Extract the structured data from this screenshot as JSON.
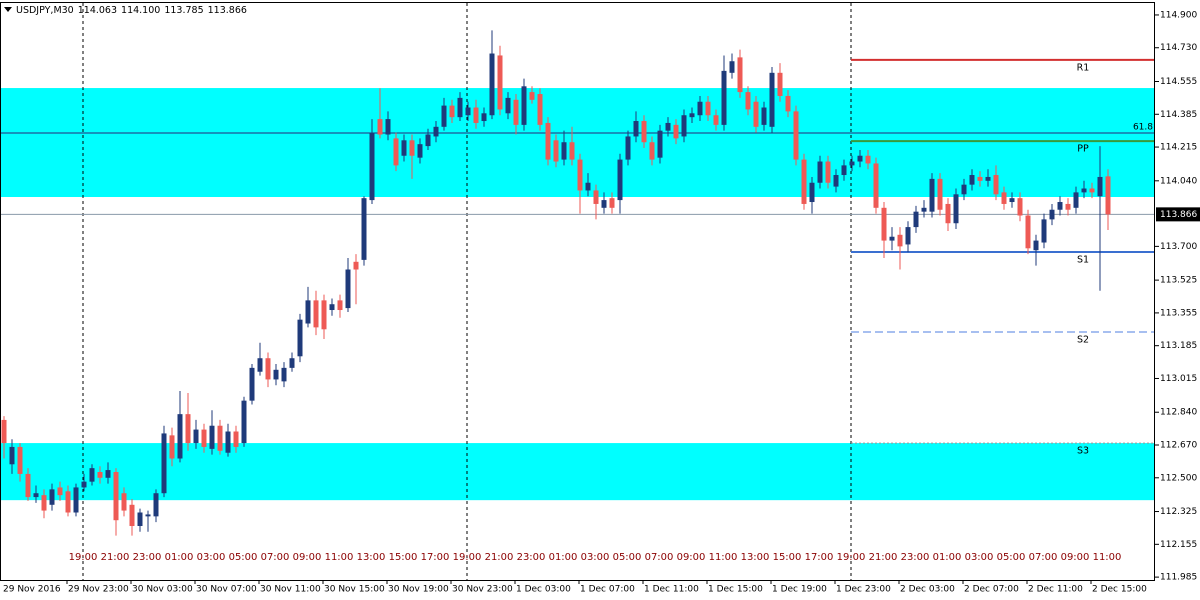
{
  "chart_data": {
    "type": "candlestick",
    "header": {
      "symbol": "USDJPY,M30",
      "ohlc_labels": [
        "114.063",
        "114.100",
        "113.785",
        "113.866"
      ]
    },
    "up_color": "#1f3a7a",
    "down_color": "#ee5a55",
    "ylim": [
      111.97,
      114.962
    ],
    "yticks": [
      {
        "value": 114.9,
        "label": "114.900"
      },
      {
        "value": 114.73,
        "label": "114.730"
      },
      114.555,
      114.385,
      114.215,
      {
        "value": 114.04,
        "label": "114.040"
      },
      {
        "value": 113.7,
        "label": "113.700"
      },
      113.525,
      113.355,
      113.185,
      113.015,
      {
        "value": 112.84,
        "label": "112.840"
      },
      {
        "value": 112.67,
        "label": "112.670"
      },
      {
        "value": 112.5,
        "label": "112.500"
      },
      112.325,
      112.155,
      111.985
    ],
    "x_labels": [
      "29 Nov 2016",
      "29 Nov 23:00",
      "30 Nov 03:00",
      "30 Nov 07:00",
      "30 Nov 11:00",
      "30 Nov 15:00",
      "30 Nov 19:00",
      "30 Nov 23:00",
      "1 Dec 03:00",
      "1 Dec 07:00",
      "1 Dec 11:00",
      "1 Dec 15:00",
      "1 Dec 19:00",
      "1 Dec 23:00",
      "2 Dec 03:00",
      "2 Dec 07:00",
      "2 Dec 11:00",
      "2 Dec 15:00"
    ],
    "hour_labels": [
      "19:00",
      "21:00",
      "23:00",
      "01:00",
      "03:00",
      "05:00",
      "07:00",
      "09:00",
      "11:00",
      "13:00",
      "15:00",
      "17:00",
      "19:00",
      "21:00",
      "23:00",
      "01:00",
      "03:00",
      "05:00",
      "07:00",
      "09:00",
      "11:00",
      "13:00",
      "15:00",
      "17:00",
      "19:00",
      "21:00",
      "23:00",
      "01:00",
      "03:00",
      "05:00",
      "07:00",
      "09:00",
      "11:00"
    ],
    "zones": [
      {
        "from": 113.956,
        "to": 114.521,
        "color": "#00ffff"
      },
      {
        "from": 112.384,
        "to": 112.68,
        "color": "#00ffff"
      }
    ],
    "fib": {
      "label": "61.8",
      "value": 114.288,
      "color": "#2a2a7a"
    },
    "levels": [
      {
        "name": "R1",
        "value": 114.667,
        "color": "#d32f2f",
        "style": "solid"
      },
      {
        "name": "PP",
        "value": 114.246,
        "color": "#3a9a3a",
        "style": "solid"
      },
      {
        "name": "S1",
        "value": 113.671,
        "color": "#3a6fd0",
        "style": "solid"
      },
      {
        "name": "S2",
        "value": 113.256,
        "color": "#4f7fe0",
        "style": "dashed"
      },
      {
        "name": "S3",
        "value": 112.68,
        "color": "#4aa8e0",
        "style": "dotted"
      }
    ],
    "open": [
      112.8,
      112.57,
      112.66,
      112.52,
      112.4,
      112.41,
      112.36,
      112.45,
      112.43,
      112.32,
      112.45,
      112.48,
      112.53,
      112.5,
      112.53,
      112.42,
      112.36,
      112.25,
      112.3,
      112.3,
      112.42,
      112.72,
      112.6,
      112.83,
      112.68,
      112.75,
      112.65,
      112.77,
      112.63,
      112.74,
      112.68,
      112.9,
      113.05,
      113.12,
      113.01,
      113.0,
      113.07,
      113.13,
      113.3,
      113.42,
      113.42,
      113.37,
      113.42,
      113.38,
      113.62,
      113.63,
      113.94,
      114.36,
      114.28,
      114.26,
      114.17,
      114.25,
      114.16,
      114.22,
      114.27,
      114.32,
      114.43,
      114.37,
      114.38,
      114.42,
      114.35,
      114.38,
      114.69,
      114.39,
      114.46,
      114.33,
      114.5,
      114.49,
      114.34,
      114.25,
      114.15,
      114.24,
      114.15,
      113.99,
      113.99,
      113.9,
      113.95,
      113.94,
      114.15,
      114.27,
      114.35,
      114.24,
      114.16,
      114.3,
      114.33,
      114.27,
      114.37,
      114.38,
      114.45,
      114.38,
      114.33,
      114.6,
      114.68,
      114.5,
      114.45,
      114.33,
      114.32,
      114.6,
      114.48,
      114.4,
      114.15,
      113.93,
      114.03,
      114.14,
      114.01,
      114.07,
      114.12,
      114.14,
      114.17,
      114.13,
      113.9,
      113.73,
      113.76,
      113.71,
      113.8,
      113.88,
      113.88,
      114.05,
      113.92,
      113.82,
      113.97,
      114.02,
      114.06,
      114.04,
      114.07,
      113.98,
      113.93,
      113.95,
      113.86,
      113.68,
      113.72,
      113.84,
      113.89,
      113.92,
      113.9,
      113.98,
      114.0,
      113.96,
      114.063
    ],
    "high": [
      112.82,
      112.7,
      112.68,
      112.55,
      112.46,
      112.44,
      112.47,
      112.48,
      112.46,
      112.47,
      112.52,
      112.57,
      112.56,
      112.58,
      112.55,
      112.45,
      112.39,
      112.34,
      112.33,
      112.44,
      112.77,
      112.76,
      112.95,
      112.94,
      112.8,
      112.78,
      112.85,
      112.8,
      112.78,
      112.77,
      112.92,
      113.09,
      113.2,
      113.15,
      113.09,
      113.1,
      113.15,
      113.35,
      113.49,
      113.47,
      113.45,
      113.43,
      113.45,
      113.64,
      113.66,
      113.96,
      114.36,
      114.52,
      114.4,
      114.29,
      114.28,
      114.28,
      114.26,
      114.31,
      114.35,
      114.47,
      114.46,
      114.5,
      114.45,
      114.46,
      114.42,
      114.82,
      114.74,
      114.5,
      114.49,
      114.57,
      114.53,
      114.52,
      114.37,
      114.28,
      114.3,
      114.32,
      114.18,
      114.08,
      114.02,
      113.98,
      113.98,
      114.18,
      114.3,
      114.4,
      114.38,
      114.27,
      114.33,
      114.37,
      114.36,
      114.41,
      114.42,
      114.48,
      114.48,
      114.41,
      114.69,
      114.7,
      114.72,
      114.53,
      114.48,
      114.45,
      114.63,
      114.65,
      114.51,
      114.43,
      114.18,
      114.06,
      114.17,
      114.17,
      114.1,
      114.15,
      114.17,
      114.2,
      114.2,
      114.16,
      113.93,
      113.8,
      113.8,
      113.83,
      113.91,
      113.94,
      114.08,
      114.08,
      113.95,
      114.0,
      114.05,
      114.1,
      114.09,
      114.1,
      114.12,
      114.01,
      113.98,
      113.98,
      113.89,
      113.76,
      113.87,
      113.92,
      113.96,
      113.95,
      114.01,
      114.04,
      114.03,
      114.22,
      114.1
    ],
    "low": [
      112.6,
      112.52,
      112.48,
      112.38,
      112.37,
      112.29,
      112.33,
      112.38,
      112.3,
      112.3,
      112.43,
      112.46,
      112.47,
      112.47,
      112.2,
      112.3,
      112.2,
      112.22,
      112.22,
      112.27,
      112.4,
      112.56,
      112.58,
      112.64,
      112.65,
      112.63,
      112.62,
      112.62,
      112.61,
      112.63,
      112.66,
      112.88,
      113.03,
      112.97,
      112.98,
      112.97,
      113.05,
      113.1,
      113.28,
      113.24,
      113.22,
      113.34,
      113.33,
      113.36,
      113.4,
      113.6,
      113.92,
      114.26,
      114.25,
      114.09,
      114.14,
      114.05,
      114.13,
      114.2,
      114.24,
      114.3,
      114.34,
      114.35,
      114.35,
      114.31,
      114.32,
      114.36,
      114.38,
      114.36,
      114.28,
      114.3,
      114.44,
      114.3,
      114.12,
      114.11,
      114.12,
      114.12,
      113.87,
      113.96,
      113.84,
      113.87,
      113.87,
      113.87,
      114.12,
      114.24,
      114.21,
      114.12,
      114.13,
      114.27,
      114.23,
      114.24,
      114.34,
      114.35,
      114.35,
      114.3,
      114.3,
      114.57,
      114.47,
      114.38,
      114.29,
      114.3,
      114.29,
      114.45,
      114.37,
      114.12,
      113.89,
      113.87,
      114.0,
      114.0,
      113.98,
      114.04,
      114.09,
      114.11,
      114.1,
      113.87,
      113.64,
      113.68,
      113.58,
      113.67,
      113.77,
      113.85,
      113.85,
      113.86,
      113.78,
      113.79,
      113.94,
      113.99,
      114.01,
      114.01,
      113.94,
      113.89,
      113.9,
      113.83,
      113.66,
      113.6,
      113.69,
      113.81,
      113.86,
      113.86,
      113.87,
      113.95,
      113.95,
      113.47,
      113.785
    ],
    "close": [
      112.68,
      112.66,
      112.52,
      112.4,
      112.42,
      112.33,
      112.44,
      112.41,
      112.32,
      112.45,
      112.48,
      112.55,
      112.5,
      112.54,
      112.28,
      112.33,
      112.25,
      112.32,
      112.31,
      112.42,
      112.73,
      112.6,
      112.83,
      112.68,
      112.75,
      112.66,
      112.77,
      112.64,
      112.74,
      112.66,
      112.9,
      113.07,
      113.12,
      113.01,
      113.06,
      113.07,
      113.12,
      113.32,
      113.42,
      113.28,
      113.27,
      113.4,
      113.37,
      113.58,
      113.58,
      113.95,
      114.29,
      114.28,
      114.36,
      114.12,
      114.25,
      114.17,
      114.23,
      114.28,
      114.32,
      114.43,
      114.37,
      114.47,
      114.42,
      114.34,
      114.39,
      114.7,
      114.41,
      114.47,
      114.33,
      114.53,
      114.46,
      114.33,
      114.15,
      114.14,
      114.24,
      114.15,
      113.99,
      114.03,
      113.92,
      113.94,
      113.9,
      114.15,
      114.27,
      114.35,
      114.24,
      114.15,
      114.3,
      114.34,
      114.26,
      114.38,
      114.39,
      114.45,
      114.38,
      114.33,
      114.61,
      114.66,
      114.5,
      114.41,
      114.32,
      114.42,
      114.6,
      114.48,
      114.4,
      114.15,
      113.92,
      114.03,
      114.14,
      114.03,
      114.07,
      114.12,
      114.14,
      114.17,
      114.13,
      113.9,
      113.73,
      113.75,
      113.7,
      113.8,
      113.88,
      113.9,
      114.05,
      113.89,
      113.82,
      113.97,
      114.02,
      114.07,
      114.04,
      114.06,
      113.97,
      113.92,
      113.95,
      113.86,
      113.69,
      113.73,
      113.84,
      113.89,
      113.93,
      113.89,
      113.98,
      114.0,
      113.98,
      114.06,
      113.866
    ]
  }
}
